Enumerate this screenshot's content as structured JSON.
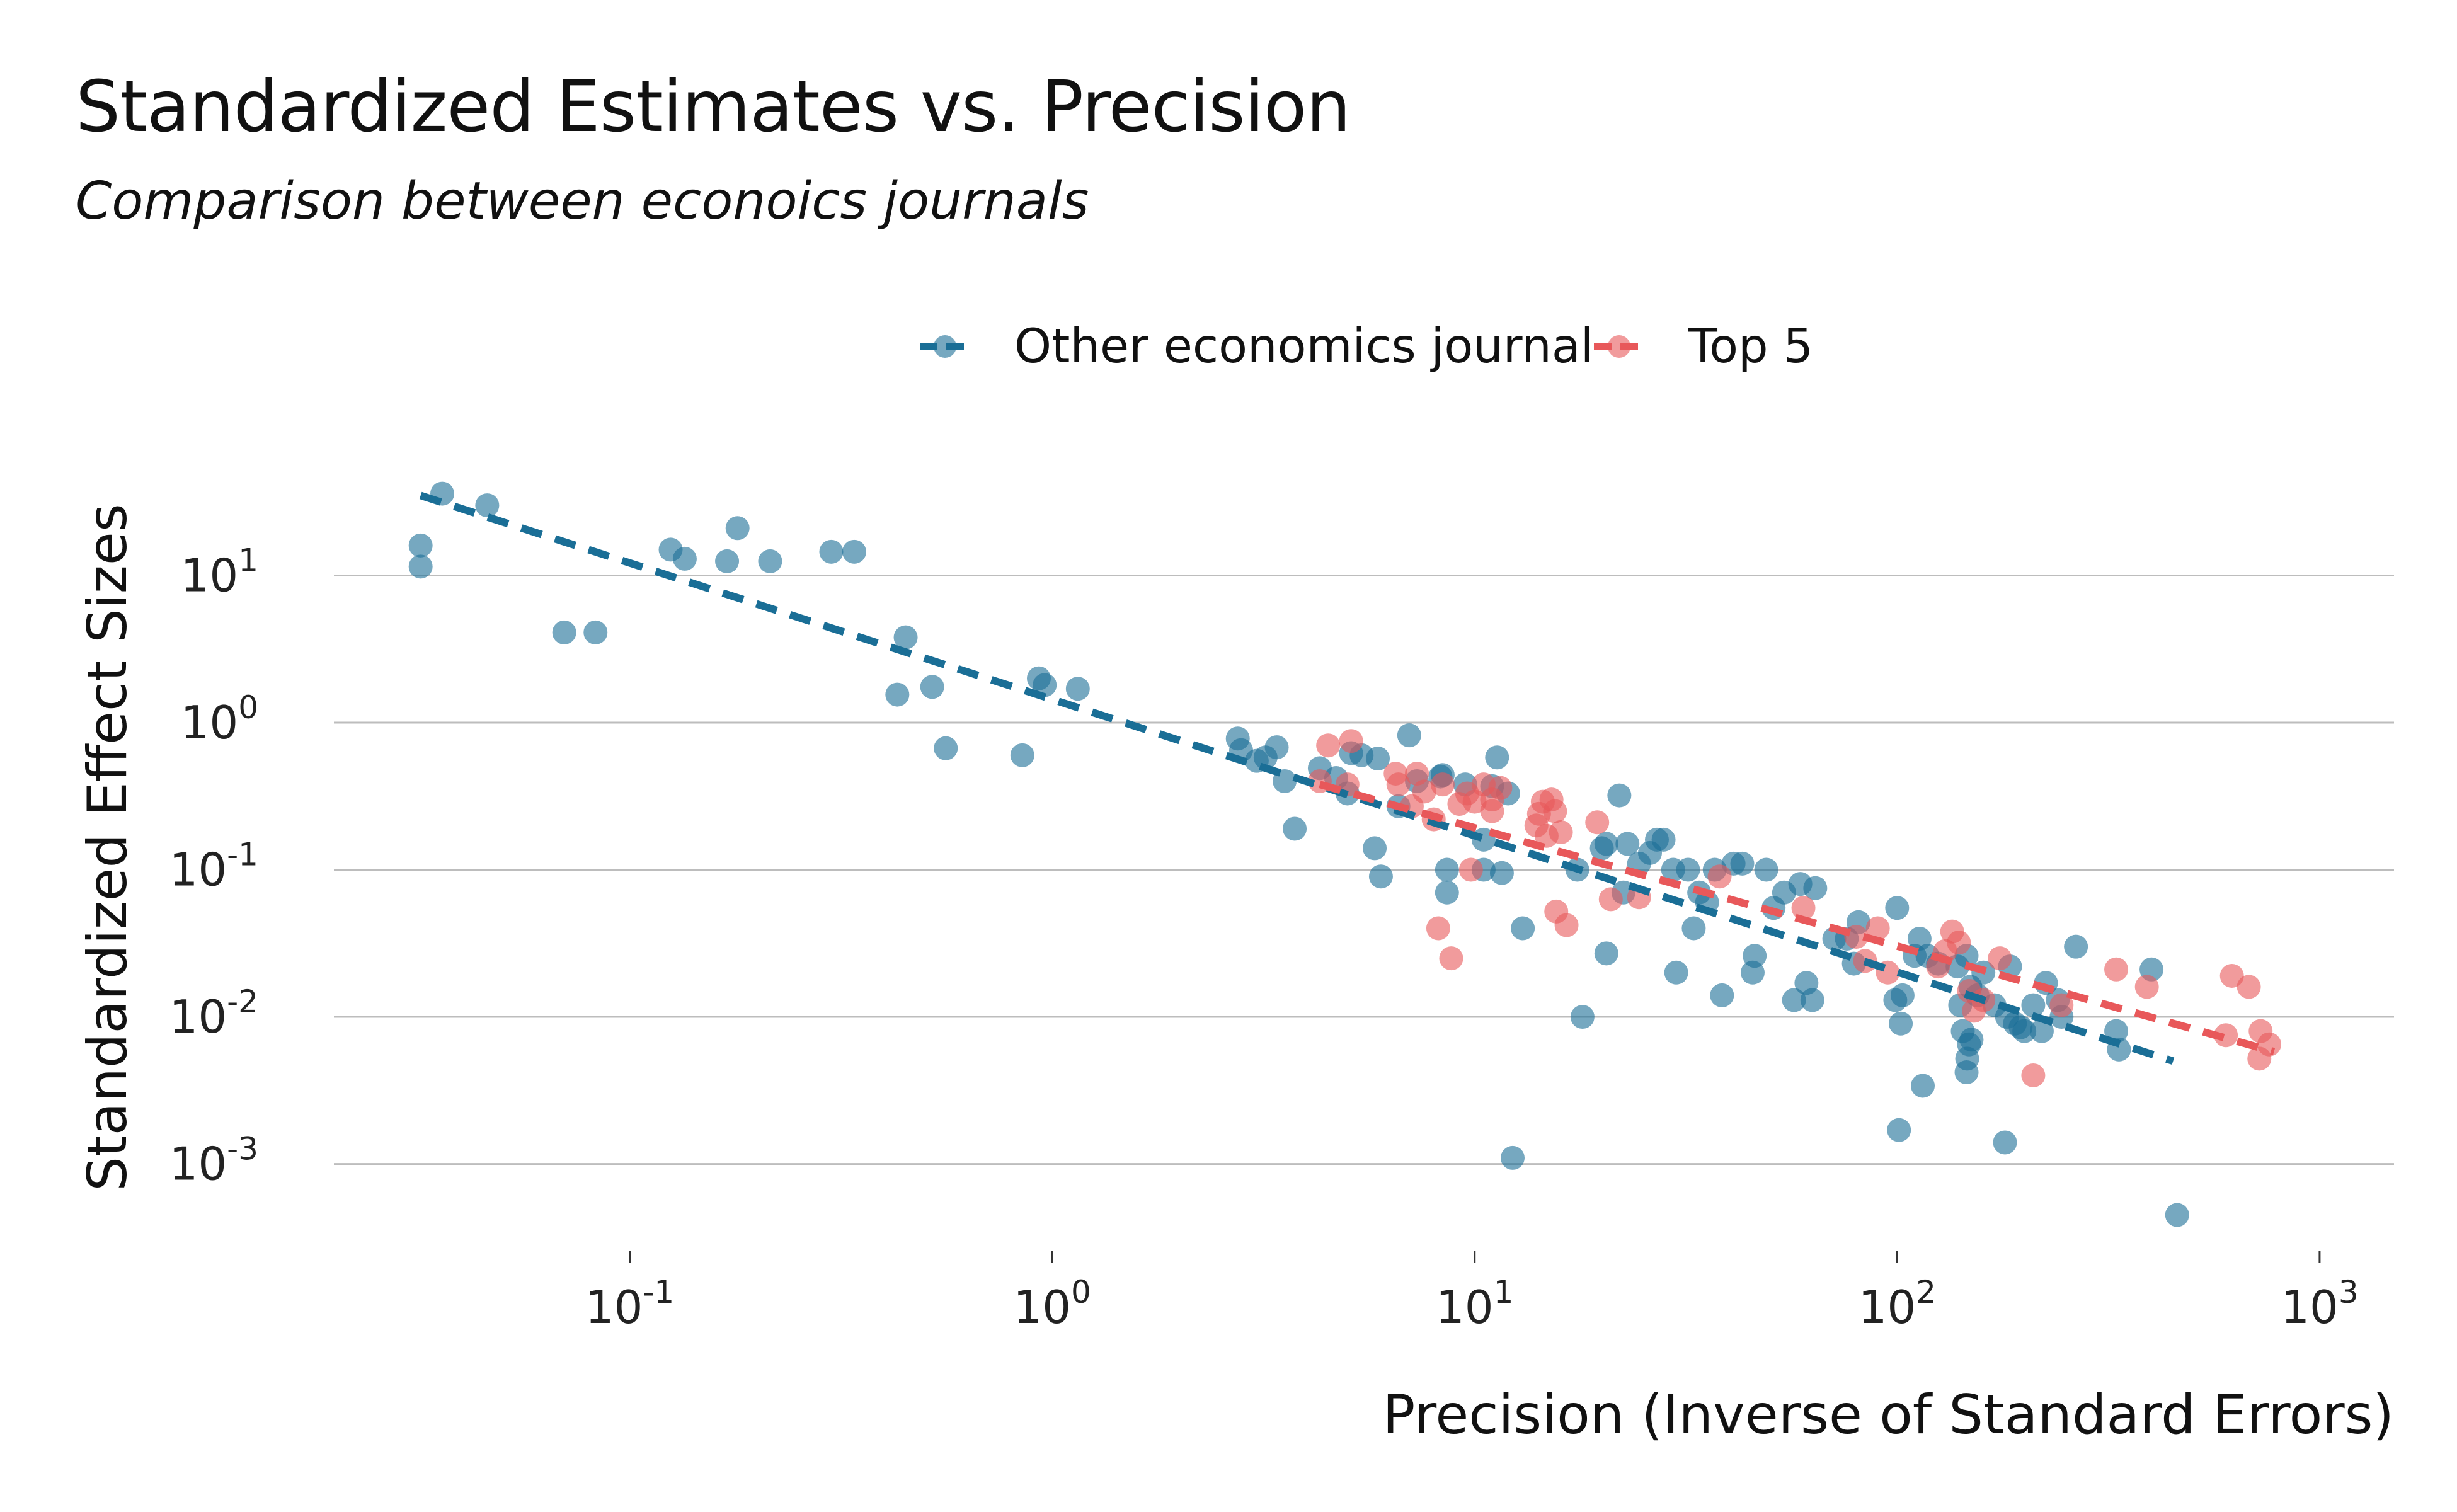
{
  "chart_data": {
    "type": "scatter",
    "title": "Standardized Estimates vs. Precision",
    "subtitle": "Comparison between econoics journals",
    "xlabel": "Precision (Inverse of Standard Errors)",
    "ylabel": "Standardized Effect Sizes",
    "x_scale": "log",
    "y_scale": "log",
    "xlim": [
      0.021,
      1500
    ],
    "ylim": [
      0.00033,
      100
    ],
    "x_ticks": [
      {
        "value": 0.1,
        "base": "10",
        "exp": "-1"
      },
      {
        "value": 1,
        "base": "10",
        "exp": "0"
      },
      {
        "value": 10,
        "base": "10",
        "exp": "1"
      },
      {
        "value": 100,
        "base": "10",
        "exp": "2"
      },
      {
        "value": 1000,
        "base": "10",
        "exp": "3"
      }
    ],
    "y_ticks": [
      {
        "value": 10,
        "base": "10",
        "exp": "1"
      },
      {
        "value": 1,
        "base": "10",
        "exp": "0"
      },
      {
        "value": 0.1,
        "base": "10",
        "exp": "-1"
      },
      {
        "value": 0.01,
        "base": "10",
        "exp": "-2"
      },
      {
        "value": 0.001,
        "base": "10",
        "exp": "-3"
      }
    ],
    "grid": "horizontal major lines",
    "legend_position": "top",
    "series": [
      {
        "name": "Other economics journal",
        "color": "#1a6e96",
        "trend_line": {
          "x": [
            0.032,
            450
          ],
          "y": [
            35,
            0.005
          ]
        },
        "points": [
          [
            0.032,
            16
          ],
          [
            0.032,
            11.5
          ],
          [
            0.036,
            36
          ],
          [
            0.046,
            30
          ],
          [
            0.07,
            4.1
          ],
          [
            0.083,
            4.1
          ],
          [
            0.125,
            15
          ],
          [
            0.135,
            13
          ],
          [
            0.17,
            12.5
          ],
          [
            0.18,
            21
          ],
          [
            0.215,
            12.5
          ],
          [
            0.3,
            14.5
          ],
          [
            0.34,
            14.5
          ],
          [
            0.43,
            1.55
          ],
          [
            0.45,
            3.8
          ],
          [
            0.52,
            1.75
          ],
          [
            0.56,
            0.67
          ],
          [
            0.85,
            0.6
          ],
          [
            0.93,
            2.0
          ],
          [
            0.96,
            1.8
          ],
          [
            1.15,
            1.7
          ],
          [
            2.75,
            0.78
          ],
          [
            2.8,
            0.65
          ],
          [
            3.05,
            0.55
          ],
          [
            3.2,
            0.58
          ],
          [
            3.4,
            0.68
          ],
          [
            3.55,
            0.4
          ],
          [
            3.75,
            0.19
          ],
          [
            4.3,
            0.49
          ],
          [
            4.7,
            0.42
          ],
          [
            5.0,
            0.33
          ],
          [
            5.1,
            0.62
          ],
          [
            5.4,
            0.6
          ],
          [
            5.8,
            0.14
          ],
          [
            5.9,
            0.57
          ],
          [
            6.0,
            0.09
          ],
          [
            6.6,
            0.27
          ],
          [
            7.0,
            0.82
          ],
          [
            7.3,
            0.4
          ],
          [
            8.3,
            0.43
          ],
          [
            8.4,
            0.44
          ],
          [
            8.6,
            0.1
          ],
          [
            8.6,
            0.07
          ],
          [
            9.5,
            0.38
          ],
          [
            10.5,
            0.1
          ],
          [
            10.5,
            0.16
          ],
          [
            11.0,
            0.37
          ],
          [
            11.3,
            0.58
          ],
          [
            11.6,
            0.095
          ],
          [
            12.0,
            0.33
          ],
          [
            12.3,
            0.0011
          ],
          [
            13.0,
            0.04
          ],
          [
            17.5,
            0.1
          ],
          [
            18.0,
            0.01
          ],
          [
            20.0,
            0.14
          ],
          [
            20.5,
            0.15
          ],
          [
            20.5,
            0.027
          ],
          [
            22.0,
            0.32
          ],
          [
            22.5,
            0.07
          ],
          [
            23.0,
            0.15
          ],
          [
            24.5,
            0.11
          ],
          [
            26.0,
            0.13
          ],
          [
            27.0,
            0.16
          ],
          [
            28.0,
            0.16
          ],
          [
            29.5,
            0.1
          ],
          [
            30.0,
            0.02
          ],
          [
            32.0,
            0.1
          ],
          [
            33.0,
            0.04
          ],
          [
            34.0,
            0.07
          ],
          [
            35.5,
            0.06
          ],
          [
            37.0,
            0.1
          ],
          [
            38.5,
            0.014
          ],
          [
            41.0,
            0.11
          ],
          [
            43.0,
            0.11
          ],
          [
            45.5,
            0.02
          ],
          [
            46.0,
            0.026
          ],
          [
            49.0,
            0.1
          ],
          [
            51.0,
            0.055
          ],
          [
            54.0,
            0.07
          ],
          [
            57.0,
            0.013
          ],
          [
            59.0,
            0.08
          ],
          [
            61.0,
            0.017
          ],
          [
            63.0,
            0.013
          ],
          [
            64.0,
            0.075
          ],
          [
            71.0,
            0.034
          ],
          [
            76.0,
            0.034
          ],
          [
            79.0,
            0.023
          ],
          [
            81.0,
            0.044
          ],
          [
            99.0,
            0.013
          ],
          [
            100.0,
            0.055
          ],
          [
            101.0,
            0.0017
          ],
          [
            102.0,
            0.009
          ],
          [
            103.0,
            0.014
          ],
          [
            110.0,
            0.026
          ],
          [
            113.0,
            0.034
          ],
          [
            115.0,
            0.0034
          ],
          [
            118.0,
            0.026
          ],
          [
            125.0,
            0.023
          ],
          [
            139.0,
            0.022
          ],
          [
            141.0,
            0.012
          ],
          [
            143.0,
            0.008
          ],
          [
            146.0,
            0.026
          ],
          [
            146.5,
            0.0052
          ],
          [
            146.0,
            0.0042
          ],
          [
            148.0,
            0.0065
          ],
          [
            149.0,
            0.016
          ],
          [
            150.0,
            0.007
          ],
          [
            155.0,
            0.014
          ],
          [
            160.0,
            0.02
          ],
          [
            170.0,
            0.012
          ],
          [
            180.0,
            0.0014
          ],
          [
            182.0,
            0.01
          ],
          [
            185.0,
            0.022
          ],
          [
            190.0,
            0.009
          ],
          [
            196.0,
            0.0085
          ],
          [
            200.0,
            0.008
          ],
          [
            210.0,
            0.012
          ],
          [
            220.0,
            0.008
          ],
          [
            225.0,
            0.017
          ],
          [
            240.0,
            0.013
          ],
          [
            245.0,
            0.01
          ],
          [
            265.0,
            0.03
          ],
          [
            330.0,
            0.008
          ],
          [
            335.0,
            0.006
          ],
          [
            400.0,
            0.021
          ],
          [
            460.0,
            0.00045
          ]
        ]
      },
      {
        "name": "Top 5",
        "color": "#e8585a",
        "trend_line": {
          "x": [
            4.3,
            780
          ],
          "y": [
            0.38,
            0.0058
          ]
        },
        "points": [
          [
            4.3,
            0.4
          ],
          [
            4.5,
            0.7
          ],
          [
            5.0,
            0.38
          ],
          [
            5.1,
            0.75
          ],
          [
            6.5,
            0.45
          ],
          [
            6.6,
            0.38
          ],
          [
            7.1,
            0.27
          ],
          [
            7.3,
            0.45
          ],
          [
            7.6,
            0.34
          ],
          [
            8.0,
            0.22
          ],
          [
            8.2,
            0.04
          ],
          [
            8.4,
            0.38
          ],
          [
            8.8,
            0.025
          ],
          [
            9.2,
            0.28
          ],
          [
            9.6,
            0.33
          ],
          [
            9.8,
            0.1
          ],
          [
            10.0,
            0.29
          ],
          [
            10.5,
            0.38
          ],
          [
            11.0,
            0.3
          ],
          [
            11.0,
            0.25
          ],
          [
            11.5,
            0.36
          ],
          [
            14.0,
            0.2
          ],
          [
            14.2,
            0.24
          ],
          [
            14.5,
            0.29
          ],
          [
            14.8,
            0.17
          ],
          [
            15.2,
            0.3
          ],
          [
            15.5,
            0.25
          ],
          [
            15.6,
            0.052
          ],
          [
            16.5,
            0.042
          ],
          [
            16.0,
            0.18
          ],
          [
            19.5,
            0.21
          ],
          [
            21.0,
            0.063
          ],
          [
            24.5,
            0.065
          ],
          [
            38.0,
            0.09
          ],
          [
            60.0,
            0.055
          ],
          [
            80.0,
            0.035
          ],
          [
            84.0,
            0.024
          ],
          [
            90.0,
            0.04
          ],
          [
            95.0,
            0.02
          ],
          [
            125.0,
            0.022
          ],
          [
            130.0,
            0.028
          ],
          [
            135.0,
            0.038
          ],
          [
            140.0,
            0.032
          ],
          [
            148.0,
            0.015
          ],
          [
            152.0,
            0.011
          ],
          [
            160.0,
            0.013
          ],
          [
            175.0,
            0.025
          ],
          [
            210.0,
            0.004
          ],
          [
            245.0,
            0.012
          ],
          [
            330.0,
            0.021
          ],
          [
            390.0,
            0.016
          ],
          [
            600.0,
            0.0075
          ],
          [
            620.0,
            0.019
          ],
          [
            680.0,
            0.016
          ],
          [
            720.0,
            0.0052
          ],
          [
            725.0,
            0.008
          ],
          [
            760.0,
            0.0065
          ]
        ]
      }
    ]
  }
}
